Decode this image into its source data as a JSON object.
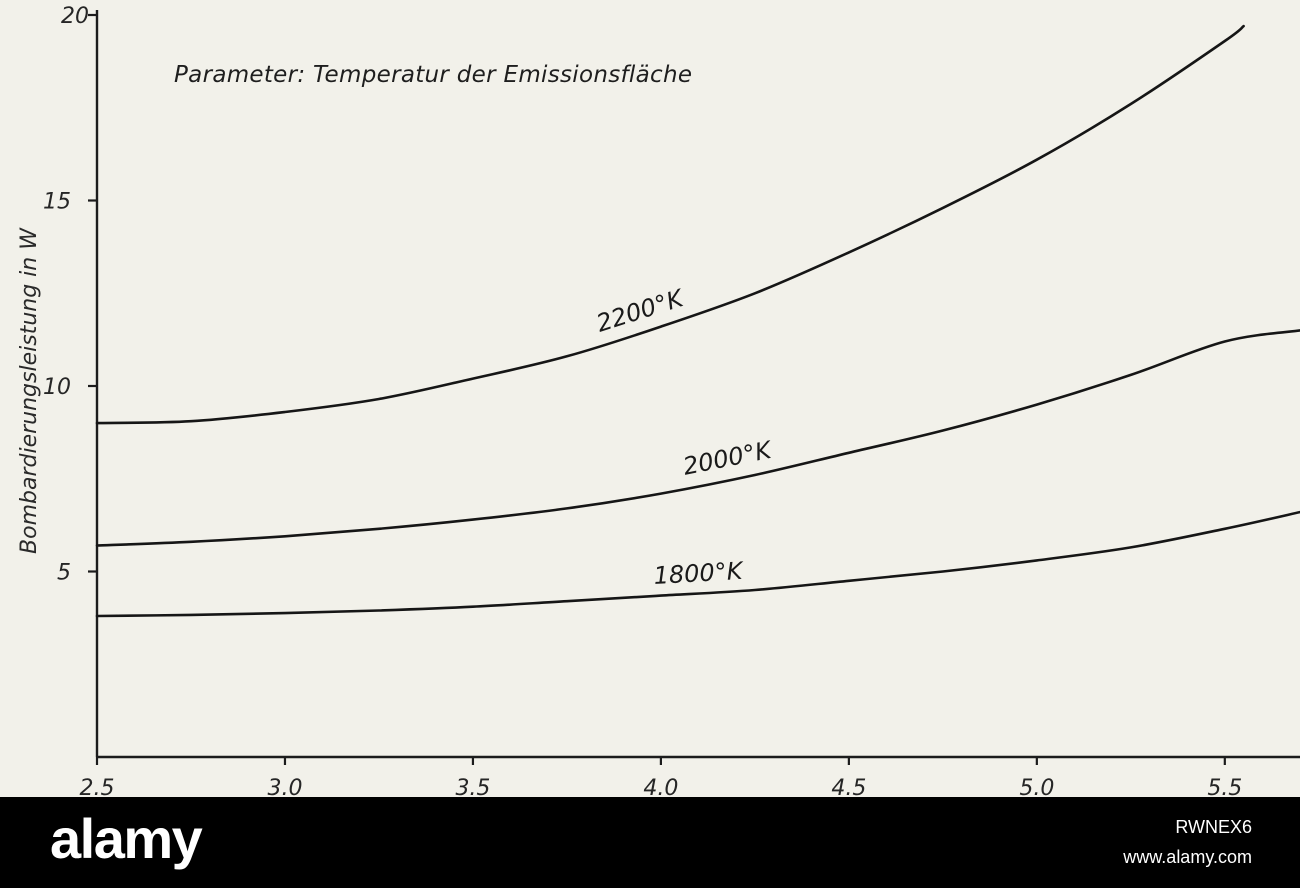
{
  "chart_data": {
    "type": "line",
    "title": "Parameter: Temperatur der Emissionsfläche",
    "xlabel": "",
    "ylabel": "Bombardierungsleistung in W",
    "xlim": [
      2.5,
      5.7
    ],
    "ylim": [
      0,
      20
    ],
    "x_ticks": [
      2.5,
      3.0,
      3.5,
      4.0,
      4.5,
      5.0,
      5.5
    ],
    "x_tick_labels": [
      "2.5",
      "3.0",
      "3.5",
      "4.0",
      "4.5",
      "5.0",
      "5.5"
    ],
    "y_ticks": [
      5,
      10,
      15,
      20
    ],
    "y_tick_labels": [
      "5",
      "10",
      "15",
      "20"
    ],
    "grid": false,
    "legend": "none",
    "series": [
      {
        "name": "2200°K",
        "x": [
          2.5,
          2.75,
          3.0,
          3.25,
          3.5,
          3.75,
          4.0,
          4.25,
          4.5,
          4.75,
          5.0,
          5.25,
          5.5,
          5.55
        ],
        "y": [
          9.0,
          9.05,
          9.3,
          9.65,
          10.2,
          10.8,
          11.6,
          12.5,
          13.6,
          14.8,
          16.1,
          17.6,
          19.3,
          19.7
        ]
      },
      {
        "name": "2000°K",
        "x": [
          2.5,
          2.75,
          3.0,
          3.25,
          3.5,
          3.75,
          4.0,
          4.25,
          4.5,
          4.75,
          5.0,
          5.25,
          5.5,
          5.7
        ],
        "y": [
          5.7,
          5.8,
          5.95,
          6.15,
          6.4,
          6.7,
          7.1,
          7.6,
          8.2,
          8.8,
          9.5,
          10.3,
          11.2,
          11.5
        ]
      },
      {
        "name": "1800°K",
        "x": [
          2.5,
          2.75,
          3.0,
          3.25,
          3.5,
          3.75,
          4.0,
          4.25,
          4.5,
          4.75,
          5.0,
          5.25,
          5.5,
          5.7
        ],
        "y": [
          3.8,
          3.83,
          3.88,
          3.95,
          4.05,
          4.2,
          4.35,
          4.5,
          4.75,
          5.0,
          5.3,
          5.65,
          6.15,
          6.6
        ]
      }
    ]
  },
  "footer": {
    "logo": "alamy",
    "image_id": "RWNEX6",
    "site": "www.alamy.com"
  },
  "colors": {
    "background": "#f2f1ea",
    "ink": "#161616",
    "footer": "#000000"
  }
}
